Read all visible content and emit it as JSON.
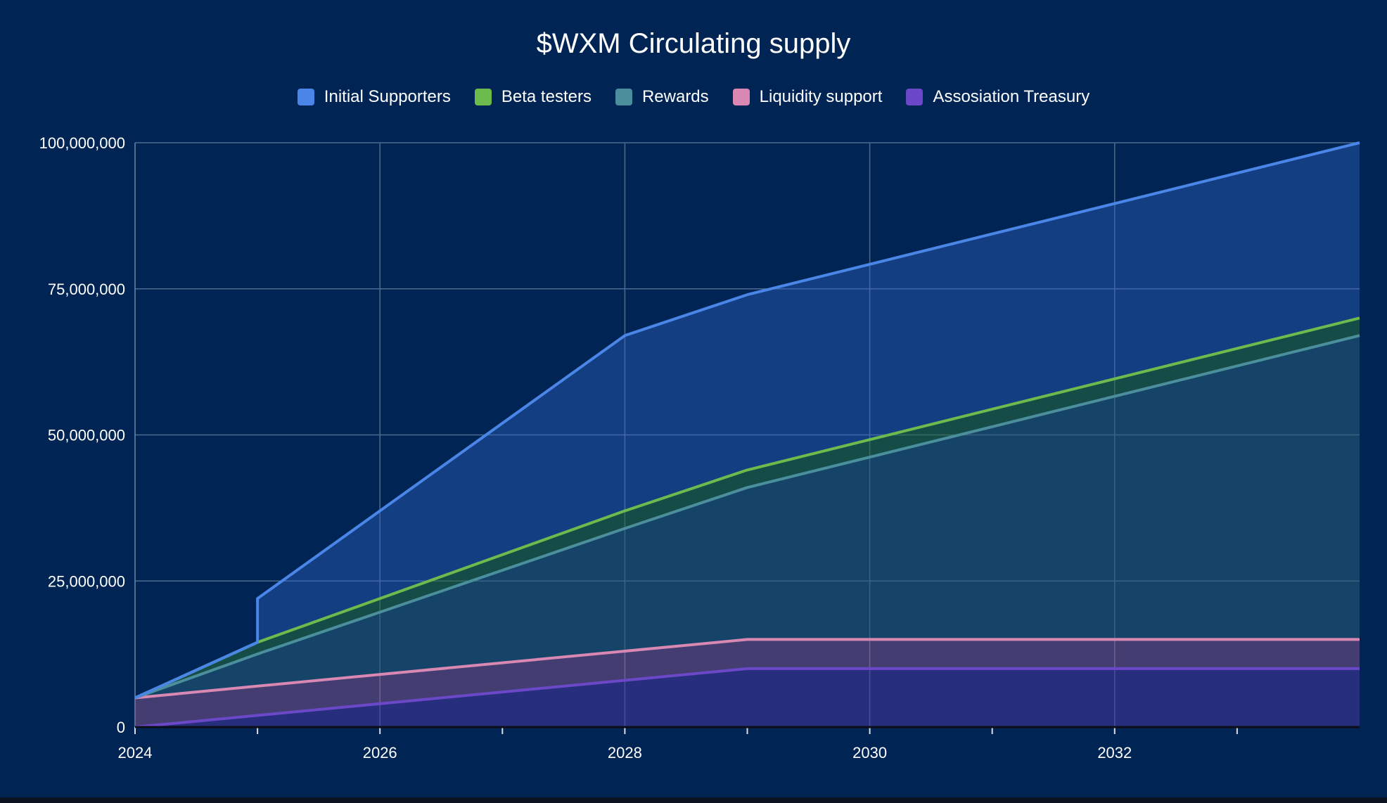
{
  "chart_data": {
    "type": "area",
    "stacked": true,
    "title": "$WXM Circulating supply",
    "xlabel": "",
    "ylabel": "",
    "xlim": [
      2024,
      2034
    ],
    "ylim": [
      0,
      100000000
    ],
    "x_ticks": [
      2024,
      2026,
      2028,
      2030,
      2032
    ],
    "x_tick_labels": [
      "2024",
      "2026",
      "2028",
      "2030",
      "2032"
    ],
    "y_ticks": [
      0,
      25000000,
      50000000,
      75000000,
      100000000
    ],
    "y_tick_labels": [
      "0",
      "25,000,000",
      "50,000,000",
      "75,000,000",
      "100,000,000"
    ],
    "grid": true,
    "legend_position": "top",
    "series_cumulative": [
      {
        "name": "Assosiation Treasury",
        "color": "#6b48c8",
        "points": [
          [
            2024,
            0
          ],
          [
            2025,
            2000000
          ],
          [
            2029,
            10000000
          ],
          [
            2034,
            10000000
          ]
        ]
      },
      {
        "name": "Liquidity support",
        "color": "#d988b3",
        "points": [
          [
            2024,
            5000000
          ],
          [
            2025,
            7000000
          ],
          [
            2029,
            15000000
          ],
          [
            2034,
            15000000
          ]
        ]
      },
      {
        "name": "Rewards",
        "color": "#4a8f9b",
        "points": [
          [
            2024,
            5000000
          ],
          [
            2025,
            12500000
          ],
          [
            2028,
            34000000
          ],
          [
            2029,
            41000000
          ],
          [
            2034,
            67000000
          ]
        ]
      },
      {
        "name": "Beta testers",
        "color": "#6dbb4d",
        "points": [
          [
            2024,
            5000000
          ],
          [
            2025,
            14500000
          ],
          [
            2028,
            37000000
          ],
          [
            2029,
            44000000
          ],
          [
            2034,
            70000000
          ]
        ]
      },
      {
        "name": "Initial Supporters",
        "color": "#4a86e8",
        "points": [
          [
            2024,
            5000000
          ],
          [
            2025,
            14500000
          ],
          [
            2025,
            22000000
          ],
          [
            2028,
            67000000
          ],
          [
            2029,
            74000000
          ],
          [
            2034,
            100000000
          ]
        ]
      }
    ],
    "legend_order": [
      "Initial Supporters",
      "Beta testers",
      "Rewards",
      "Liquidity support",
      "Assosiation Treasury"
    ]
  }
}
